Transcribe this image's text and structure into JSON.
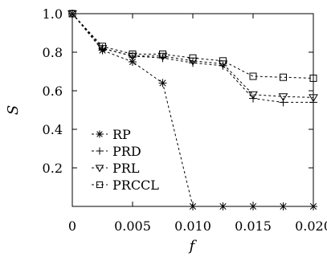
{
  "chart_data": {
    "type": "line",
    "xlabel": "f",
    "ylabel": "S",
    "xlim": [
      0,
      0.02
    ],
    "ylim": [
      0,
      1.0
    ],
    "x_ticks": [
      0,
      0.005,
      0.01,
      0.015,
      0.02
    ],
    "x_tick_labels": [
      "0",
      "0.005",
      "0.010",
      "0.015",
      "0.020"
    ],
    "y_ticks": [
      0.2,
      0.4,
      0.6,
      0.8,
      1.0
    ],
    "y_tick_labels": [
      "0.2",
      "0.4",
      "0.6",
      "0.8",
      "1.0"
    ],
    "legend_position": "bottom-left",
    "grid": false,
    "x": [
      0,
      0.0025,
      0.005,
      0.0075,
      0.01,
      0.0125,
      0.015,
      0.0175,
      0.02
    ],
    "series": [
      {
        "name": "RP",
        "marker": "asterisk",
        "values": [
          1.0,
          0.81,
          0.75,
          0.64,
          0.0,
          0.0,
          0.0,
          0.0,
          0.0
        ]
      },
      {
        "name": "PRD",
        "marker": "plus",
        "values": [
          1.0,
          0.82,
          0.78,
          0.77,
          0.745,
          0.73,
          0.56,
          0.54,
          0.54
        ]
      },
      {
        "name": "PRL",
        "marker": "triangle",
        "values": [
          1.0,
          0.82,
          0.78,
          0.78,
          0.755,
          0.74,
          0.58,
          0.57,
          0.565
        ]
      },
      {
        "name": "PRCCL",
        "marker": "square",
        "values": [
          1.0,
          0.83,
          0.79,
          0.79,
          0.77,
          0.755,
          0.675,
          0.67,
          0.665
        ]
      }
    ]
  }
}
